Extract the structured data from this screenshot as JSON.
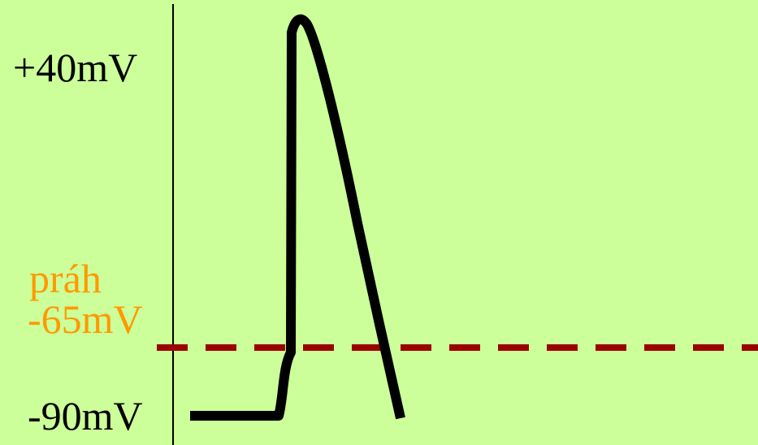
{
  "colors": {
    "background": "#ccff99",
    "axis": "#000000",
    "trace": "#000000",
    "threshold_line": "#990000",
    "threshold_text": "#ff9900",
    "label_text": "#000000"
  },
  "labels": {
    "peak": "+40mV",
    "threshold_word": "práh",
    "threshold_value": "-65mV",
    "resting": "-90mV"
  },
  "levels_mV": {
    "peak": 40,
    "threshold": -65,
    "resting": -90
  },
  "threshold_line_style": "dashed"
}
